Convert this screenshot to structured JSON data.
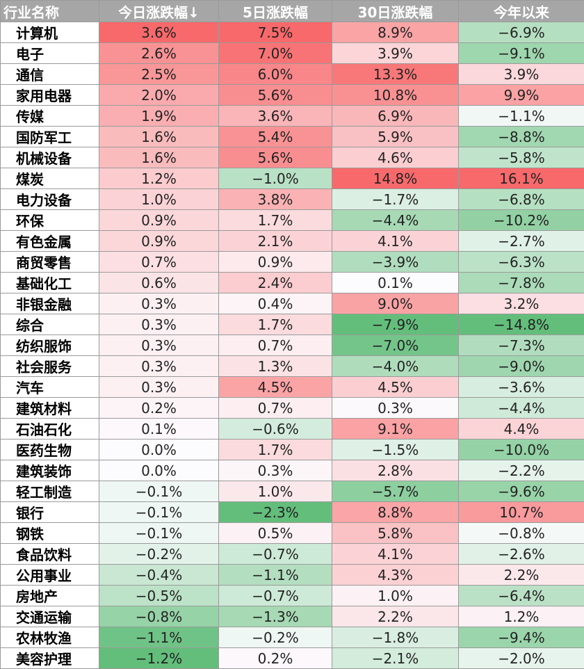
{
  "chart_data": {
    "type": "heatmap",
    "columns": [
      "行业名称",
      "今日涨跌幅↓",
      "5日涨跌幅",
      "30日涨跌幅",
      "今年以来"
    ],
    "rows": [
      {
        "name": "计算机",
        "values": [
          "3.6%",
          "7.5%",
          "8.9%",
          "−6.9%"
        ]
      },
      {
        "name": "电子",
        "values": [
          "2.6%",
          "7.0%",
          "3.9%",
          "−9.1%"
        ]
      },
      {
        "name": "通信",
        "values": [
          "2.5%",
          "6.0%",
          "13.3%",
          "3.9%"
        ]
      },
      {
        "name": "家用电器",
        "values": [
          "2.0%",
          "5.6%",
          "10.8%",
          "9.9%"
        ]
      },
      {
        "name": "传媒",
        "values": [
          "1.9%",
          "3.6%",
          "6.9%",
          "−1.1%"
        ]
      },
      {
        "name": "国防军工",
        "values": [
          "1.6%",
          "5.4%",
          "5.9%",
          "−8.8%"
        ]
      },
      {
        "name": "机械设备",
        "values": [
          "1.6%",
          "5.6%",
          "4.6%",
          "−5.8%"
        ]
      },
      {
        "name": "煤炭",
        "values": [
          "1.2%",
          "−1.0%",
          "14.8%",
          "16.1%"
        ]
      },
      {
        "name": "电力设备",
        "values": [
          "1.0%",
          "3.8%",
          "−1.7%",
          "−6.8%"
        ]
      },
      {
        "name": "环保",
        "values": [
          "0.9%",
          "1.7%",
          "−4.4%",
          "−10.2%"
        ]
      },
      {
        "name": "有色金属",
        "values": [
          "0.9%",
          "2.1%",
          "4.1%",
          "−2.7%"
        ]
      },
      {
        "name": "商贸零售",
        "values": [
          "0.7%",
          "0.9%",
          "−3.9%",
          "−6.3%"
        ]
      },
      {
        "name": "基础化工",
        "values": [
          "0.6%",
          "2.4%",
          "0.1%",
          "−7.8%"
        ]
      },
      {
        "name": "非银金融",
        "values": [
          "0.3%",
          "0.4%",
          "9.0%",
          "3.2%"
        ]
      },
      {
        "name": "综合",
        "values": [
          "0.3%",
          "1.7%",
          "−7.9%",
          "−14.8%"
        ]
      },
      {
        "name": "纺织服饰",
        "values": [
          "0.3%",
          "0.7%",
          "−7.0%",
          "−7.3%"
        ]
      },
      {
        "name": "社会服务",
        "values": [
          "0.3%",
          "1.3%",
          "−4.0%",
          "−9.0%"
        ]
      },
      {
        "name": "汽车",
        "values": [
          "0.3%",
          "4.5%",
          "4.5%",
          "−3.6%"
        ]
      },
      {
        "name": "建筑材料",
        "values": [
          "0.2%",
          "0.7%",
          "0.3%",
          "−4.4%"
        ]
      },
      {
        "name": "石油石化",
        "values": [
          "0.1%",
          "−0.6%",
          "9.1%",
          "4.4%"
        ]
      },
      {
        "name": "医药生物",
        "values": [
          "0.0%",
          "1.7%",
          "−1.5%",
          "−10.0%"
        ]
      },
      {
        "name": "建筑装饰",
        "values": [
          "0.0%",
          "0.3%",
          "2.8%",
          "−2.2%"
        ]
      },
      {
        "name": "轻工制造",
        "values": [
          "−0.1%",
          "1.0%",
          "−5.7%",
          "−9.6%"
        ]
      },
      {
        "name": "银行",
        "values": [
          "−0.1%",
          "−2.3%",
          "8.8%",
          "10.7%"
        ]
      },
      {
        "name": "钢铁",
        "values": [
          "−0.1%",
          "0.5%",
          "5.8%",
          "−0.8%"
        ]
      },
      {
        "name": "食品饮料",
        "values": [
          "−0.2%",
          "−0.7%",
          "4.1%",
          "−2.6%"
        ]
      },
      {
        "name": "公用事业",
        "values": [
          "−0.4%",
          "−1.1%",
          "4.3%",
          "2.2%"
        ]
      },
      {
        "name": "房地产",
        "values": [
          "−0.5%",
          "−0.7%",
          "1.0%",
          "−6.4%"
        ]
      },
      {
        "name": "交通运输",
        "values": [
          "−0.8%",
          "−1.3%",
          "2.2%",
          "1.2%"
        ]
      },
      {
        "name": "农林牧渔",
        "values": [
          "−1.1%",
          "−0.2%",
          "−1.8%",
          "−9.4%"
        ]
      },
      {
        "name": "美容护理",
        "values": [
          "−1.2%",
          "0.2%",
          "−2.1%",
          "−2.0%"
        ]
      }
    ],
    "colors": {
      "header_bg": "#a6a6a6",
      "positive_max": "#f8696b",
      "neutral": "#fcfcff",
      "negative_max": "#63be7b"
    }
  }
}
